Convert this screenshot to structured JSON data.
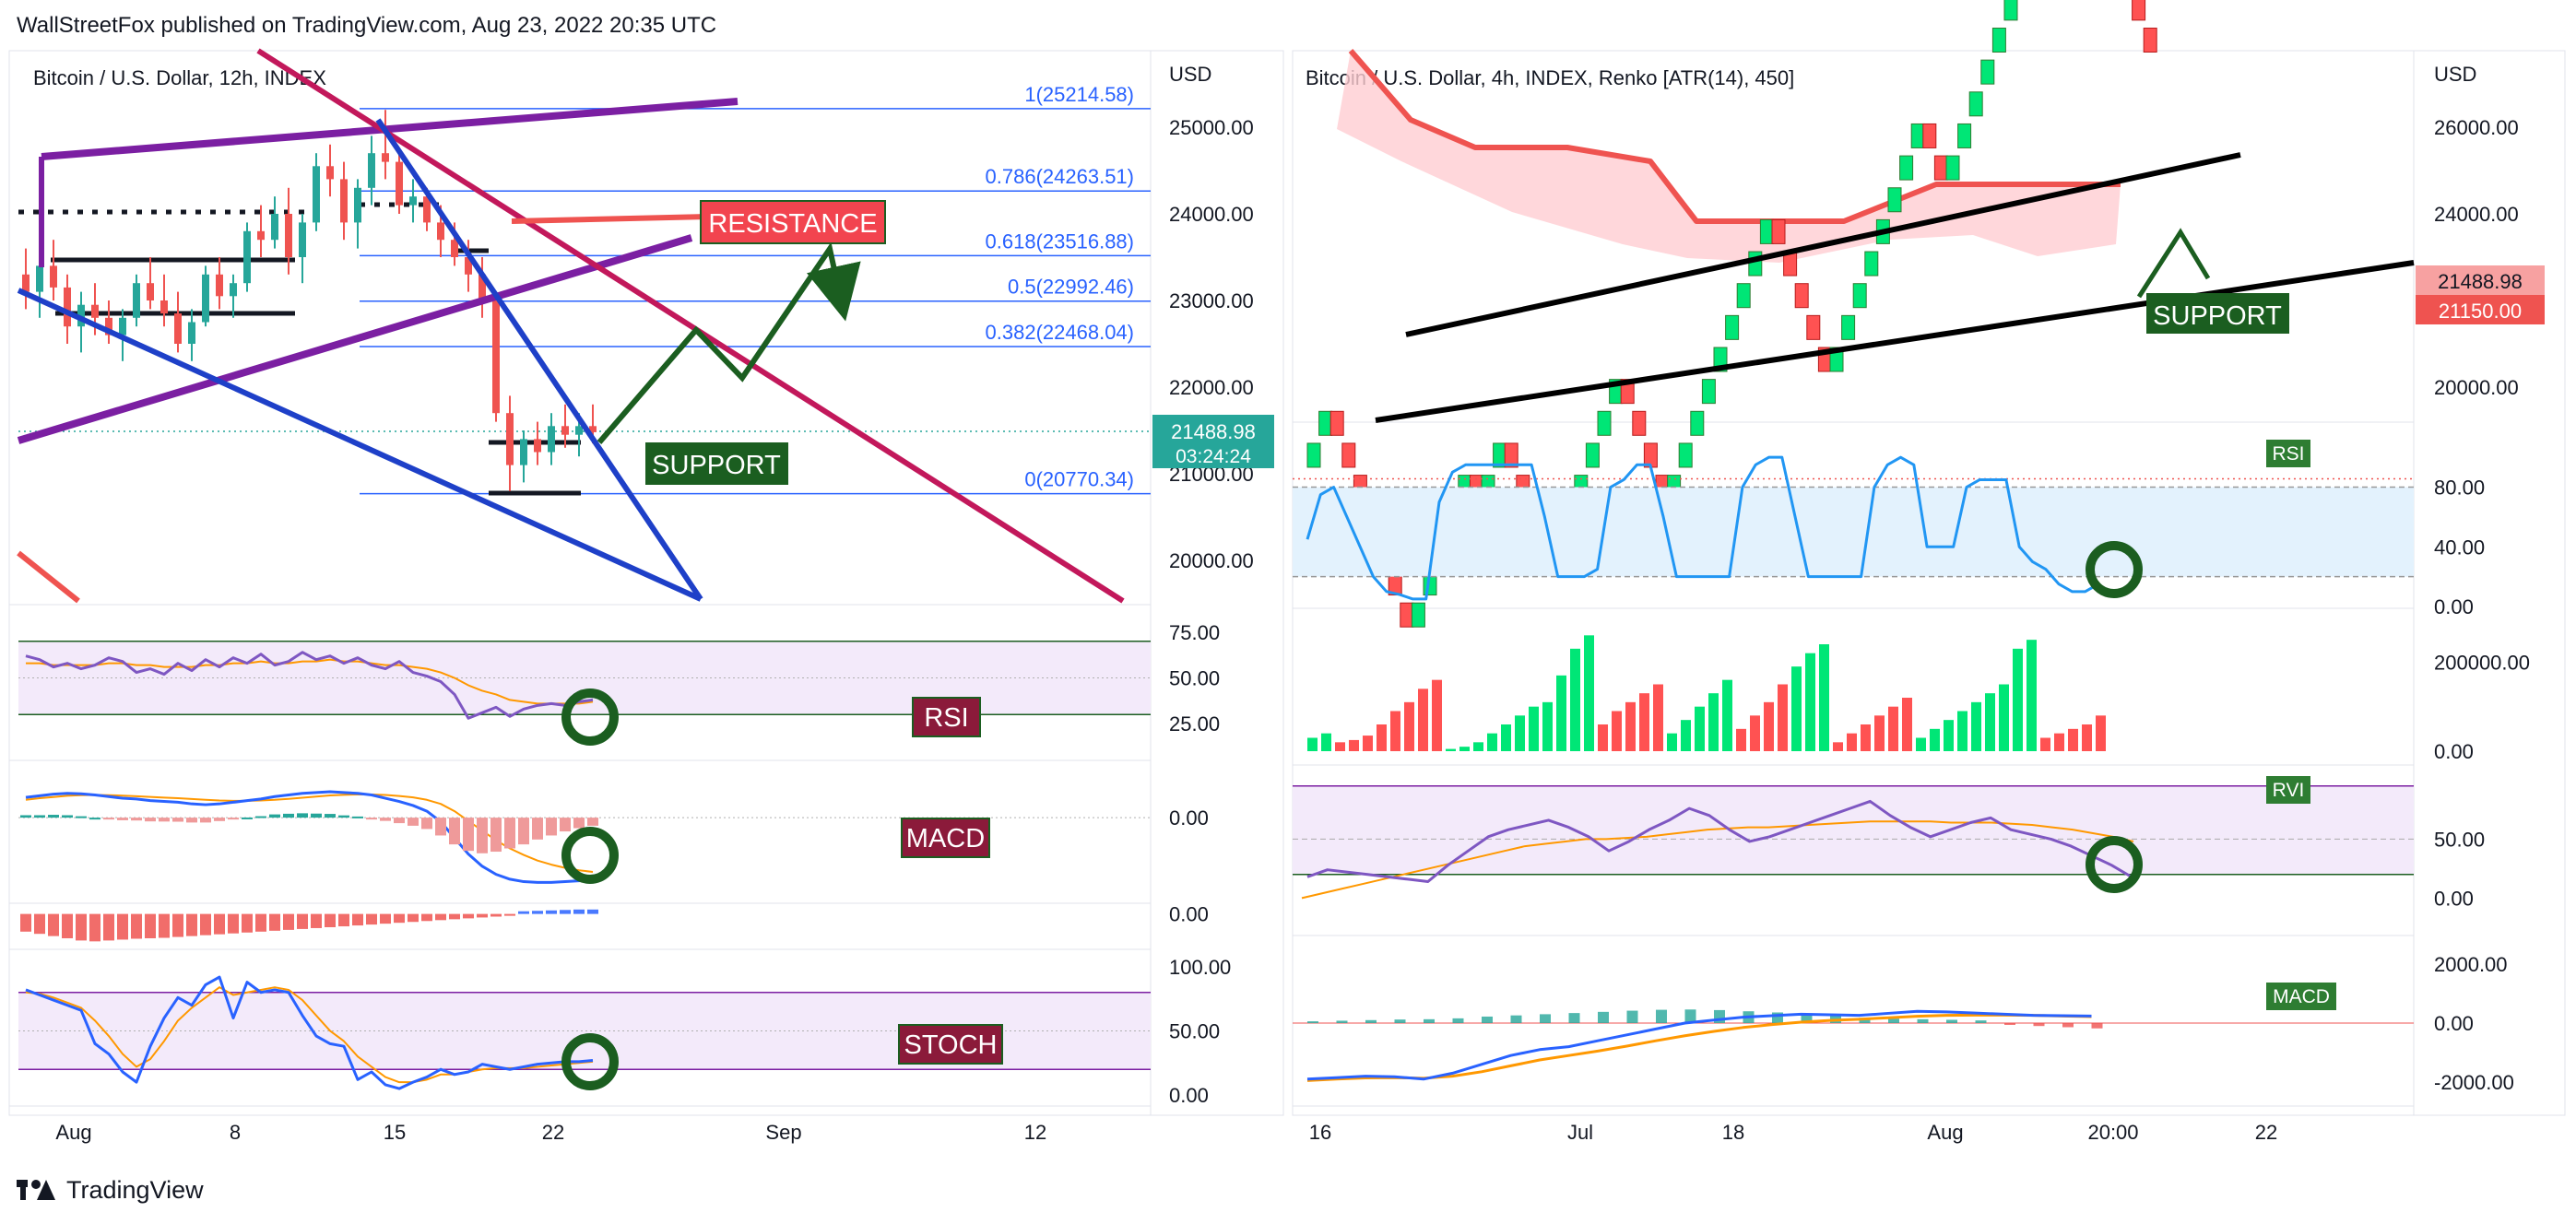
{
  "header": {
    "published": "WallStreetFox published on TradingView.com, Aug 23, 2022 20:35 UTC"
  },
  "footer": {
    "brand": "TradingView"
  },
  "colors": {
    "up": "#26a69a",
    "down": "#ef5350",
    "purple": "#7b1fa2",
    "magenta": "#c2185b",
    "blue": "#1e40c8",
    "green_arrow": "#1b5e20",
    "rsi_line": "#7e57c2",
    "macd_blue": "#2962ff",
    "signal_orange": "#ff9800",
    "price_tag": "#26a69a",
    "renko_up": "#00e676",
    "renko_down": "#ff5252"
  },
  "chart_data": [
    {
      "id": "left",
      "type": "candlestick",
      "title": "Bitcoin / U.S. Dollar, 12h, INDEX",
      "currency": "USD",
      "y_ticks": [
        "25000.00",
        "24000.00",
        "23000.00",
        "22000.00",
        "21000.00",
        "20000.00"
      ],
      "x_ticks": [
        "Aug",
        "8",
        "15",
        "22",
        "Sep",
        "12"
      ],
      "last_price": "21488.98",
      "countdown": "03:24:24",
      "fib_levels": [
        {
          "label": "1(25214.58)",
          "value": 25214.58
        },
        {
          "label": "0.786(24263.51)",
          "value": 24263.51
        },
        {
          "label": "0.618(23516.88)",
          "value": 23516.88
        },
        {
          "label": "0.5(22992.46)",
          "value": 22992.46
        },
        {
          "label": "0.382(22468.04)",
          "value": 22468.04
        },
        {
          "label": "0(20770.34)",
          "value": 20770.34
        }
      ],
      "annotations": {
        "resistance": "RESISTANCE",
        "support": "SUPPORT"
      },
      "candles": [
        [
          23300,
          23600,
          22900,
          23100
        ],
        [
          23100,
          23500,
          22800,
          23400
        ],
        [
          23400,
          23700,
          23000,
          23150
        ],
        [
          23150,
          23300,
          22500,
          22700
        ],
        [
          22700,
          23100,
          22400,
          22950
        ],
        [
          22950,
          23200,
          22600,
          22800
        ],
        [
          22800,
          23000,
          22500,
          22600
        ],
        [
          22600,
          22900,
          22300,
          22800
        ],
        [
          22800,
          23300,
          22700,
          23200
        ],
        [
          23200,
          23500,
          22900,
          23000
        ],
        [
          23000,
          23300,
          22700,
          22850
        ],
        [
          22850,
          23100,
          22400,
          22500
        ],
        [
          22500,
          22900,
          22300,
          22750
        ],
        [
          22750,
          23400,
          22700,
          23300
        ],
        [
          23300,
          23500,
          22900,
          23050
        ],
        [
          23050,
          23300,
          22800,
          23200
        ],
        [
          23200,
          23900,
          23100,
          23800
        ],
        [
          23800,
          24100,
          23500,
          23700
        ],
        [
          23700,
          24200,
          23600,
          24000
        ],
        [
          24000,
          24300,
          23300,
          23500
        ],
        [
          23500,
          24000,
          23200,
          23900
        ],
        [
          23900,
          24700,
          23800,
          24550
        ],
        [
          24550,
          24800,
          24200,
          24400
        ],
        [
          24400,
          24600,
          23700,
          23900
        ],
        [
          23900,
          24400,
          23600,
          24300
        ],
        [
          24300,
          24900,
          24100,
          24700
        ],
        [
          24700,
          25200,
          24400,
          24600
        ],
        [
          24600,
          24700,
          24000,
          24100
        ],
        [
          24100,
          24400,
          23900,
          24200
        ],
        [
          24200,
          24300,
          23800,
          23900
        ],
        [
          23900,
          24100,
          23500,
          23700
        ],
        [
          23700,
          23900,
          23400,
          23500
        ],
        [
          23500,
          23700,
          23100,
          23300
        ],
        [
          23300,
          23500,
          22800,
          23000
        ],
        [
          23000,
          23100,
          21600,
          21700
        ],
        [
          21700,
          21900,
          20800,
          21100
        ],
        [
          21100,
          21500,
          20900,
          21400
        ],
        [
          21400,
          21600,
          21100,
          21250
        ],
        [
          21250,
          21700,
          21100,
          21550
        ],
        [
          21550,
          21800,
          21300,
          21450
        ],
        [
          21450,
          21700,
          21200,
          21550
        ],
        [
          21550,
          21800,
          21350,
          21480
        ]
      ],
      "sub_panels": [
        {
          "name": "RSI",
          "y_ticks": [
            "75.00",
            "50.00",
            "25.00"
          ],
          "values": [
            62,
            60,
            56,
            58,
            55,
            57,
            61,
            59,
            53,
            55,
            52,
            58,
            54,
            60,
            56,
            61,
            58,
            63,
            57,
            59,
            64,
            60,
            62,
            58,
            61,
            57,
            55,
            59,
            53,
            51,
            48,
            41,
            28,
            31,
            34,
            29,
            33,
            35,
            36,
            35,
            37,
            38
          ],
          "signal": [
            58,
            58,
            57,
            57,
            57,
            57,
            58,
            58,
            57,
            57,
            56,
            56,
            56,
            57,
            57,
            58,
            58,
            59,
            58,
            58,
            59,
            59,
            60,
            59,
            59,
            58,
            57,
            57,
            56,
            55,
            53,
            50,
            46,
            43,
            41,
            38,
            37,
            36,
            36,
            36,
            36,
            37
          ]
        },
        {
          "name": "MACD",
          "y_ticks": [
            "0.00"
          ],
          "values": [
            250,
            270,
            290,
            300,
            295,
            280,
            260,
            240,
            230,
            210,
            200,
            190,
            170,
            160,
            170,
            190,
            210,
            230,
            260,
            280,
            300,
            310,
            320,
            310,
            300,
            280,
            240,
            200,
            150,
            80,
            -50,
            -250,
            -450,
            -600,
            -700,
            -760,
            -790,
            -800,
            -800,
            -790,
            -780,
            -770
          ],
          "signal": [
            220,
            240,
            255,
            270,
            278,
            280,
            278,
            272,
            265,
            256,
            248,
            240,
            230,
            220,
            212,
            208,
            208,
            212,
            220,
            232,
            246,
            260,
            274,
            282,
            286,
            286,
            280,
            268,
            250,
            220,
            170,
            80,
            -40,
            -160,
            -280,
            -380,
            -460,
            -530,
            -580,
            -620,
            -650,
            -670
          ]
        },
        {
          "name": "MACD histogram",
          "y_ticks": [
            "0.00"
          ],
          "values": [
            -40,
            -45,
            -50,
            -55,
            -60,
            -62,
            -60,
            -58,
            -56,
            -55,
            -54,
            -52,
            -50,
            -48,
            -46,
            -44,
            -42,
            -40,
            -38,
            -36,
            -34,
            -32,
            -30,
            -28,
            -26,
            -24,
            -22,
            -20,
            -18,
            -16,
            -14,
            -12,
            -10,
            -8,
            -6,
            -4,
            6,
            7,
            8,
            9,
            10,
            10
          ]
        },
        {
          "name": "STOCH",
          "y_ticks": [
            "100.00",
            "50.00",
            "0.00"
          ],
          "values": [
            82,
            78,
            74,
            70,
            66,
            40,
            32,
            18,
            10,
            38,
            60,
            76,
            70,
            86,
            92,
            60,
            88,
            80,
            82,
            80,
            62,
            46,
            40,
            38,
            12,
            18,
            8,
            5,
            10,
            14,
            20,
            16,
            18,
            24,
            22,
            20,
            22,
            24,
            25,
            26,
            26,
            27
          ],
          "signal": [
            80,
            79,
            76,
            72,
            68,
            58,
            46,
            32,
            22,
            28,
            42,
            58,
            68,
            76,
            84,
            78,
            80,
            82,
            84,
            82,
            74,
            62,
            50,
            42,
            30,
            22,
            14,
            10,
            10,
            12,
            16,
            16,
            18,
            20,
            21,
            21,
            21,
            22,
            23,
            24,
            25,
            26
          ]
        }
      ]
    },
    {
      "id": "right",
      "type": "renko",
      "title": "Bitcoin / U.S. Dollar, 4h, INDEX, Renko [ATR(14), 450]",
      "currency": "USD",
      "y_ticks": [
        "26000.00",
        "24000.00",
        "22000.00",
        "20000.00"
      ],
      "x_ticks": [
        "16",
        "Jul",
        "18",
        "Aug",
        "20:00"
      ],
      "last_price": "21488.98",
      "low_marker": "21150.00",
      "annotations": {
        "support": "SUPPORT"
      },
      "bricks": [
        1,
        1,
        -1,
        -1,
        -1,
        -1,
        -1,
        -1,
        -1,
        1,
        1,
        1,
        1,
        1,
        -1,
        1,
        1,
        -1,
        -1,
        -1,
        -1,
        1,
        1,
        1,
        1,
        1,
        1,
        -1,
        -1,
        -1,
        -1,
        1,
        1,
        1,
        1,
        1,
        1,
        1,
        1,
        1,
        -1,
        -1,
        -1,
        -1,
        -1,
        1,
        1,
        1,
        1,
        1,
        1,
        1,
        1,
        -1,
        -1,
        1,
        1,
        1,
        1,
        1,
        1,
        1,
        -1,
        1,
        1,
        1,
        1,
        -1,
        -1,
        -1,
        -1,
        -1,
        -1
      ],
      "sub_panels": [
        {
          "name": "RSI",
          "y_ticks": [
            "80.00",
            "40.00",
            "0.00"
          ],
          "values": [
            45,
            75,
            80,
            60,
            40,
            20,
            10,
            8,
            5,
            5,
            70,
            90,
            95,
            95,
            95,
            95,
            95,
            95,
            60,
            20,
            20,
            20,
            25,
            80,
            85,
            95,
            95,
            60,
            20,
            20,
            20,
            20,
            20,
            80,
            95,
            100,
            100,
            60,
            20,
            20,
            20,
            20,
            20,
            80,
            95,
            100,
            95,
            40,
            40,
            40,
            80,
            85,
            85,
            85,
            40,
            30,
            25,
            15,
            10,
            10,
            15
          ],
          "band_top": 80,
          "band_bottom": 20
        },
        {
          "name": "Volume",
          "y_ticks": [
            "200000.00",
            "0.00"
          ],
          "values": [
            30000,
            40000,
            20000,
            25000,
            35000,
            60000,
            90000,
            110000,
            140000,
            160000,
            5000,
            10000,
            20000,
            40000,
            60000,
            80000,
            100000,
            110000,
            170000,
            230000,
            260000,
            60000,
            90000,
            110000,
            130000,
            150000,
            40000,
            70000,
            100000,
            130000,
            160000,
            50000,
            80000,
            110000,
            150000,
            190000,
            220000,
            240000,
            20000,
            40000,
            60000,
            80000,
            100000,
            120000,
            30000,
            50000,
            70000,
            90000,
            110000,
            130000,
            150000,
            230000,
            250000,
            30000,
            40000,
            50000,
            60000,
            80000
          ],
          "colors": [
            1,
            1,
            -1,
            -1,
            -1,
            -1,
            -1,
            -1,
            -1,
            -1,
            1,
            1,
            1,
            1,
            1,
            1,
            1,
            1,
            1,
            1,
            1,
            -1,
            -1,
            -1,
            -1,
            -1,
            1,
            1,
            1,
            1,
            1,
            -1,
            -1,
            -1,
            -1,
            1,
            1,
            1,
            -1,
            -1,
            -1,
            -1,
            -1,
            -1,
            1,
            1,
            1,
            1,
            1,
            1,
            1,
            1,
            1,
            -1,
            -1,
            -1,
            -1,
            -1
          ]
        },
        {
          "name": "RVI",
          "y_ticks": [
            "50.00",
            "0.00"
          ],
          "values": [
            18,
            24,
            22,
            20,
            18,
            16,
            14,
            28,
            40,
            52,
            58,
            62,
            66,
            60,
            52,
            40,
            48,
            58,
            66,
            76,
            70,
            58,
            48,
            52,
            58,
            64,
            70,
            76,
            82,
            70,
            60,
            52,
            58,
            64,
            68,
            58,
            54,
            50,
            44,
            36,
            28,
            18
          ],
          "signal": [
            0,
            4,
            8,
            12,
            16,
            20,
            24,
            28,
            32,
            36,
            40,
            44,
            46,
            48,
            50,
            50,
            51,
            52,
            54,
            56,
            58,
            59,
            60,
            60,
            61,
            62,
            63,
            64,
            65,
            65,
            65,
            65,
            64,
            64,
            64,
            63,
            62,
            60,
            58,
            55,
            52,
            48
          ]
        },
        {
          "name": "MACD",
          "y_ticks": [
            "2000.00",
            "0.00",
            "-2000.00"
          ],
          "values": [
            -1900,
            -1850,
            -1800,
            -1820,
            -1900,
            -1700,
            -1400,
            -1100,
            -900,
            -800,
            -600,
            -400,
            -200,
            0,
            100,
            200,
            250,
            300,
            280,
            260,
            330,
            400,
            380,
            340,
            300,
            260,
            250,
            240
          ],
          "signal": [
            -1950,
            -1900,
            -1860,
            -1850,
            -1870,
            -1800,
            -1650,
            -1450,
            -1250,
            -1100,
            -950,
            -780,
            -600,
            -430,
            -280,
            -150,
            -50,
            30,
            90,
            130,
            180,
            230,
            260,
            270,
            270,
            260,
            240,
            220
          ],
          "hist": [
            60,
            80,
            100,
            120,
            130,
            160,
            220,
            260,
            300,
            340,
            380,
            420,
            450,
            460,
            440,
            400,
            360,
            300,
            240,
            180,
            150,
            130,
            110,
            90,
            -60,
            -100,
            -140,
            -180
          ]
        }
      ]
    }
  ]
}
